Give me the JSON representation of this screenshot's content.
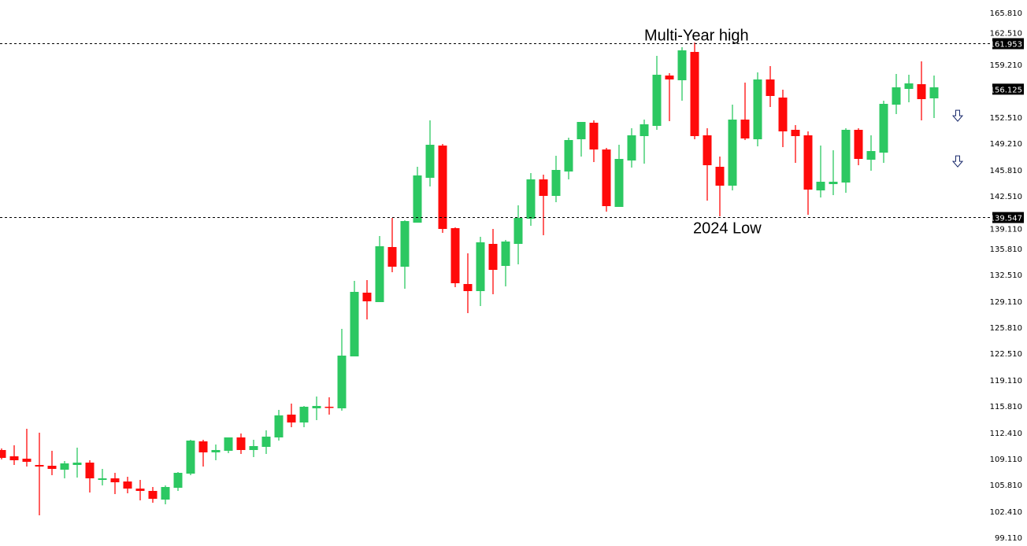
{
  "chart_data": {
    "type": "candlestick",
    "title": "",
    "xlabel": "",
    "ylabel": "",
    "ylim": [
      99.11,
      165.81
    ],
    "grid": false,
    "y_ticks": [
      "165.810",
      "162.510",
      "159.210",
      "152.510",
      "149.210",
      "145.810",
      "142.510",
      "139.110",
      "135.810",
      "132.510",
      "129.110",
      "125.810",
      "122.510",
      "119.110",
      "115.810",
      "112.410",
      "109.110",
      "105.810",
      "102.410",
      "99.110"
    ],
    "colors": {
      "up": "#2cc862",
      "down": "#ff0a0a",
      "price_label_bg": "#000000",
      "arrow_stroke": "#1a2a6c"
    },
    "levels": [
      {
        "label": "Multi-Year high",
        "price": 161.953,
        "price_text": "161.953"
      },
      {
        "label": "2024 Low",
        "price": 139.547,
        "price_text": "139.547"
      }
    ],
    "current_price": {
      "price": 156.125,
      "price_text": "156.125"
    },
    "signals": [
      {
        "icon": "down-arrow-icon",
        "price": 152.5
      },
      {
        "icon": "down-arrow-icon",
        "price": 146.7
      }
    ],
    "ohlc": [
      [
        110.21,
        110.41,
        109.01,
        109.21
      ],
      [
        109.41,
        110.81,
        108.31,
        108.91
      ],
      [
        109.11,
        112.91,
        108.11,
        108.71
      ],
      [
        108.31,
        112.41,
        101.91,
        108.11
      ],
      [
        108.21,
        110.11,
        107.01,
        107.81
      ],
      [
        107.71,
        108.81,
        106.61,
        108.51
      ],
      [
        108.31,
        110.51,
        106.71,
        108.61
      ],
      [
        108.61,
        108.91,
        104.81,
        106.61
      ],
      [
        106.41,
        107.81,
        105.71,
        106.61
      ],
      [
        106.61,
        107.31,
        104.61,
        106.11
      ],
      [
        106.21,
        106.81,
        104.71,
        105.31
      ],
      [
        105.31,
        106.41,
        103.81,
        105.01
      ],
      [
        105.01,
        105.51,
        103.51,
        104.01
      ],
      [
        103.91,
        105.71,
        103.31,
        105.51
      ],
      [
        105.41,
        107.41,
        105.01,
        107.31
      ],
      [
        107.21,
        111.51,
        107.01,
        111.41
      ],
      [
        111.31,
        111.51,
        108.11,
        109.91
      ],
      [
        109.91,
        110.91,
        108.91,
        110.21
      ],
      [
        110.11,
        111.81,
        109.81,
        111.81
      ],
      [
        111.81,
        112.31,
        109.71,
        110.21
      ],
      [
        110.21,
        111.51,
        109.31,
        110.71
      ],
      [
        110.61,
        112.71,
        109.71,
        111.91
      ],
      [
        111.81,
        115.31,
        111.41,
        114.61
      ],
      [
        114.71,
        116.11,
        113.11,
        113.71
      ],
      [
        113.71,
        115.81,
        113.11,
        115.71
      ],
      [
        115.51,
        117.01,
        114.01,
        115.81
      ],
      [
        115.71,
        116.91,
        114.71,
        115.61
      ],
      [
        115.51,
        125.61,
        115.21,
        122.21
      ],
      [
        122.11,
        131.71,
        122.11,
        130.31
      ],
      [
        130.21,
        131.81,
        126.81,
        129.11
      ],
      [
        129.01,
        137.41,
        129.01,
        136.11
      ],
      [
        136.01,
        139.71,
        132.81,
        133.51
      ],
      [
        133.51,
        139.41,
        130.71,
        139.31
      ],
      [
        139.11,
        146.21,
        139.11,
        145.11
      ],
      [
        144.81,
        152.11,
        143.71,
        149.01
      ],
      [
        148.91,
        149.11,
        137.81,
        138.31
      ],
      [
        138.41,
        138.51,
        130.91,
        131.41
      ],
      [
        131.31,
        135.21,
        127.61,
        130.41
      ],
      [
        130.41,
        137.31,
        128.51,
        136.61
      ],
      [
        136.41,
        138.31,
        130.01,
        133.11
      ],
      [
        133.61,
        136.91,
        131.01,
        136.71
      ],
      [
        136.41,
        141.31,
        133.81,
        139.71
      ],
      [
        139.61,
        145.41,
        138.71,
        144.61
      ],
      [
        144.61,
        145.21,
        137.51,
        142.51
      ],
      [
        142.51,
        147.61,
        141.71,
        145.81
      ],
      [
        145.61,
        149.91,
        144.61,
        149.61
      ],
      [
        149.71,
        151.91,
        147.51,
        151.91
      ],
      [
        151.81,
        152.11,
        146.81,
        148.41
      ],
      [
        148.41,
        148.61,
        140.51,
        141.21
      ],
      [
        141.11,
        149.01,
        141.11,
        147.21
      ],
      [
        147.01,
        151.11,
        146.11,
        150.21
      ],
      [
        150.11,
        152.21,
        146.61,
        151.61
      ],
      [
        151.41,
        160.31,
        150.91,
        157.91
      ],
      [
        157.81,
        158.11,
        152.01,
        157.31
      ],
      [
        157.21,
        161.41,
        154.61,
        161.01
      ],
      [
        160.81,
        162.01,
        149.71,
        150.11
      ],
      [
        150.21,
        151.11,
        141.91,
        146.41
      ],
      [
        146.21,
        147.51,
        139.91,
        143.81
      ],
      [
        143.81,
        154.11,
        143.21,
        152.21
      ],
      [
        152.21,
        156.91,
        149.61,
        149.81
      ],
      [
        149.71,
        158.21,
        148.81,
        157.31
      ],
      [
        157.31,
        159.01,
        153.81,
        155.21
      ],
      [
        155.01,
        156.01,
        148.71,
        150.71
      ],
      [
        150.91,
        151.51,
        146.71,
        150.11
      ],
      [
        150.21,
        150.71,
        140.11,
        143.31
      ],
      [
        143.21,
        148.91,
        142.31,
        144.31
      ],
      [
        144.01,
        148.31,
        142.61,
        144.31
      ],
      [
        144.21,
        151.11,
        142.91,
        150.91
      ],
      [
        150.91,
        151.11,
        146.41,
        147.21
      ],
      [
        147.11,
        150.21,
        145.71,
        148.21
      ],
      [
        148.01,
        154.61,
        146.71,
        154.21
      ],
      [
        154.11,
        158.01,
        152.91,
        156.31
      ],
      [
        156.11,
        157.91,
        154.41,
        156.81
      ],
      [
        156.71,
        159.61,
        152.11,
        154.81
      ],
      [
        154.91,
        157.81,
        152.41,
        156.31
      ]
    ]
  }
}
